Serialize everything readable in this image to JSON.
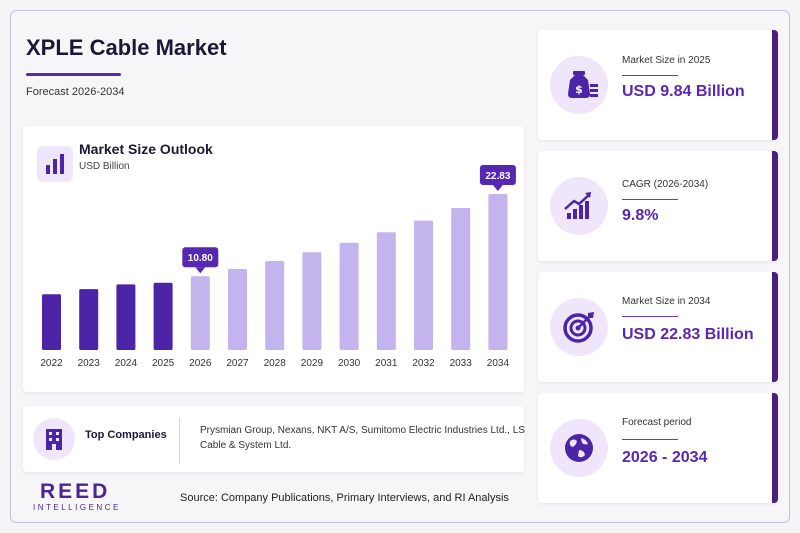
{
  "header": {
    "title": "XPLE Cable Market",
    "subtitle": "Forecast 2026-2034"
  },
  "chart_card": {
    "title": "Market Size Outlook",
    "unit": "USD Billion"
  },
  "chart_data": {
    "type": "bar",
    "categories": [
      "2022",
      "2023",
      "2024",
      "2025",
      "2026",
      "2027",
      "2028",
      "2029",
      "2030",
      "2031",
      "2032",
      "2033",
      "2034"
    ],
    "values": [
      8.16,
      8.9,
      9.6,
      9.84,
      10.8,
      11.86,
      13.02,
      14.3,
      15.7,
      17.24,
      18.93,
      20.78,
      22.83
    ],
    "labeled": {
      "2026": "10.80",
      "2034": "22.83"
    },
    "title": "Market Size Outlook",
    "ylabel": "USD Billion",
    "colors": {
      "historical": "#4c24a6",
      "forecast": "#c3b4ee",
      "callout": "#5527b3"
    }
  },
  "companies": {
    "label": "Top Companies",
    "text": "Prysmian Group, Nexans, NKT A/S, Sumitomo Electric Industries Ltd., LS Cable & System Ltd."
  },
  "stats": [
    {
      "label": "Market Size in 2025",
      "value": "USD 9.84 Billion",
      "icon": "money-bag-icon"
    },
    {
      "label": "CAGR (2026-2034)",
      "value": "9.8%",
      "icon": "growth-chart-icon"
    },
    {
      "label": "Market Size in 2034",
      "value": "USD 22.83 Billion",
      "icon": "target-icon"
    },
    {
      "label": "Forecast period",
      "value": "2026 - 2034",
      "icon": "globe-icon"
    }
  ],
  "logo": {
    "main": "REED",
    "sub": "INTELLIGENCE"
  },
  "footer": {
    "source": "Source: Company Publications, Primary Interviews, and RI Analysis"
  }
}
